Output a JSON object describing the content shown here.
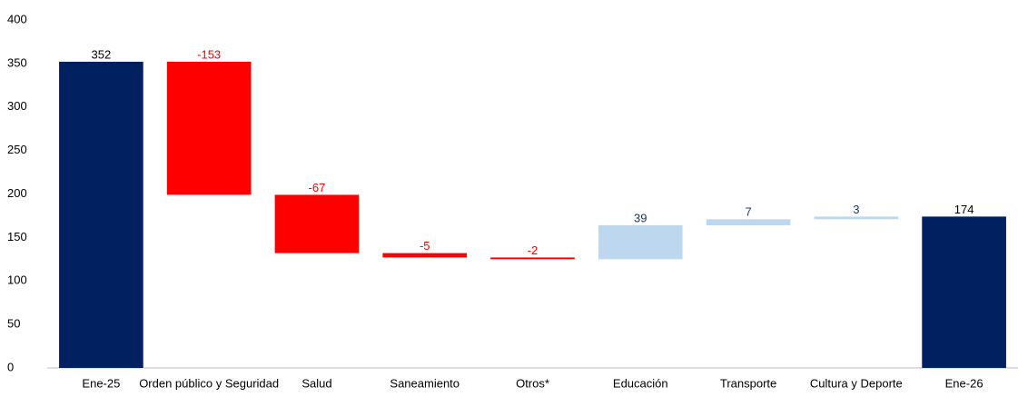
{
  "chart_data": {
    "type": "waterfall",
    "categories": [
      "Ene-25",
      "Orden público y Seguridad",
      "Salud",
      "Saneamiento",
      "Otros*",
      "Educación",
      "Transporte",
      "Cultura y Deporte",
      "Ene-26"
    ],
    "values": [
      352,
      -153,
      -67,
      -5,
      -2,
      39,
      7,
      3,
      174
    ],
    "total_indices": [
      0,
      8
    ],
    "colors": {
      "total": "#002060",
      "increase": "#bdd7ee",
      "decrease": "#ff0000"
    },
    "label_colors": {
      "total": "#000000",
      "increase": "#1f3864",
      "decrease": "#ff0000"
    },
    "ylim": [
      0,
      400
    ],
    "yticks": [
      0,
      50,
      100,
      150,
      200,
      250,
      300,
      350,
      400
    ]
  }
}
